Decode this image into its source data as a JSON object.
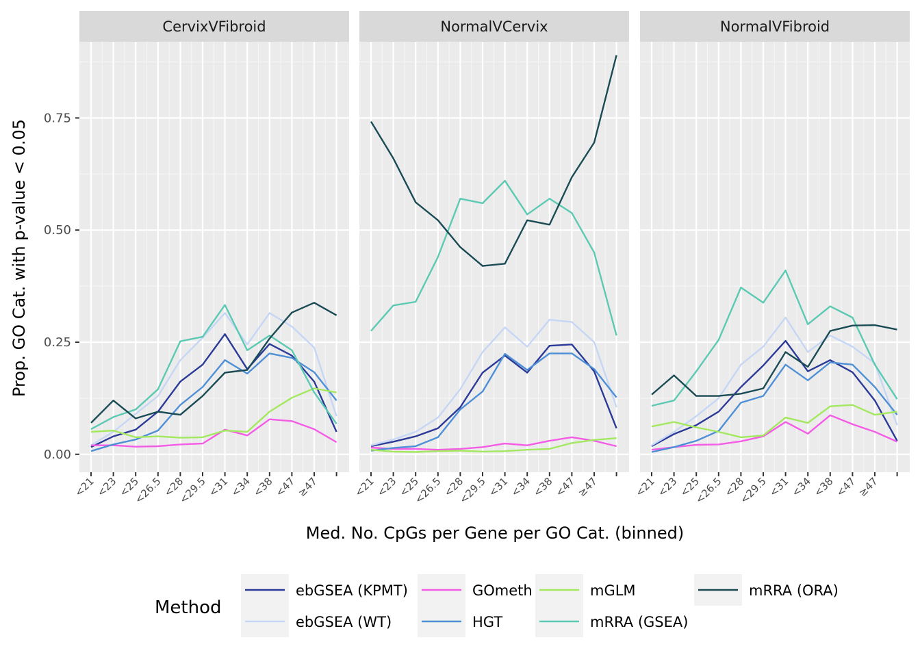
{
  "chart_data": {
    "type": "line",
    "ylabel": "Prop. GO Cat. with p-value < 0.05",
    "xlabel": "Med. No. CpGs per Gene per GO Cat. (binned)",
    "ylim": [
      -0.04,
      0.92
    ],
    "yticks": [
      0.0,
      0.25,
      0.5,
      0.75
    ],
    "ytick_labels": [
      "0.00",
      "0.25",
      "0.50",
      "0.75"
    ],
    "categories": [
      "<21",
      "<23",
      "<25",
      "<26.5",
      "<28",
      "<29.5",
      "<31",
      "<34",
      "<38",
      "<47",
      "≥47",
      ""
    ],
    "grid": true,
    "legend_title": "Method",
    "legend_position": "bottom",
    "colors": {
      "ebGSEA (KPMT)": "#2b3a97",
      "ebGSEA (WT)": "#c6d6f5",
      "GOmeth": "#f45ce6",
      "HGT": "#4e8fd6",
      "mGLM": "#a3e85f",
      "mRRA (GSEA)": "#5cc9b3",
      "mRRA (ORA)": "#1a4b55"
    },
    "legend_order": [
      "ebGSEA (KPMT)",
      "ebGSEA (WT)",
      "GOmeth",
      "HGT",
      "mGLM",
      "mRRA (GSEA)",
      "mRRA (ORA)"
    ],
    "panels": [
      {
        "title": "CervixVFibroid",
        "series": [
          {
            "name": "ebGSEA (KPMT)",
            "values": [
              0.016,
              0.04,
              0.055,
              0.095,
              0.162,
              0.2,
              0.268,
              0.19,
              0.246,
              0.22,
              0.162,
              0.05
            ]
          },
          {
            "name": "ebGSEA (WT)",
            "values": [
              0.02,
              0.05,
              0.09,
              0.13,
              0.21,
              0.26,
              0.315,
              0.245,
              0.315,
              0.285,
              0.238,
              0.085
            ]
          },
          {
            "name": "GOmeth",
            "values": [
              0.02,
              0.02,
              0.017,
              0.018,
              0.022,
              0.024,
              0.055,
              0.042,
              0.078,
              0.074,
              0.056,
              0.027
            ]
          },
          {
            "name": "HGT",
            "values": [
              0.007,
              0.022,
              0.033,
              0.053,
              0.11,
              0.15,
              0.21,
              0.18,
              0.225,
              0.215,
              0.183,
              0.12
            ]
          },
          {
            "name": "mGLM",
            "values": [
              0.05,
              0.053,
              0.038,
              0.04,
              0.037,
              0.038,
              0.053,
              0.05,
              0.095,
              0.126,
              0.147,
              0.138
            ]
          },
          {
            "name": "mRRA (GSEA)",
            "values": [
              0.056,
              0.083,
              0.1,
              0.145,
              0.252,
              0.262,
              0.333,
              0.232,
              0.265,
              0.232,
              0.138,
              0.068
            ]
          },
          {
            "name": "mRRA (ORA)",
            "values": [
              0.07,
              0.12,
              0.08,
              0.095,
              0.088,
              0.13,
              0.182,
              0.188,
              0.258,
              0.316,
              0.338,
              0.31
            ]
          }
        ]
      },
      {
        "title": "NormalVCervix",
        "series": [
          {
            "name": "ebGSEA (KPMT)",
            "values": [
              0.018,
              0.028,
              0.04,
              0.058,
              0.105,
              0.182,
              0.22,
              0.182,
              0.242,
              0.245,
              0.185,
              0.058
            ]
          },
          {
            "name": "ebGSEA (WT)",
            "values": [
              0.02,
              0.033,
              0.05,
              0.082,
              0.145,
              0.228,
              0.283,
              0.24,
              0.3,
              0.295,
              0.25,
              0.105
            ]
          },
          {
            "name": "GOmeth",
            "values": [
              0.015,
              0.012,
              0.012,
              0.01,
              0.012,
              0.016,
              0.024,
              0.02,
              0.03,
              0.038,
              0.03,
              0.018
            ]
          },
          {
            "name": "HGT",
            "values": [
              0.008,
              0.014,
              0.018,
              0.038,
              0.1,
              0.14,
              0.224,
              0.188,
              0.225,
              0.225,
              0.19,
              0.127
            ]
          },
          {
            "name": "mGLM",
            "values": [
              0.01,
              0.006,
              0.005,
              0.007,
              0.008,
              0.006,
              0.007,
              0.01,
              0.012,
              0.025,
              0.032,
              0.036
            ]
          },
          {
            "name": "mRRA (GSEA)",
            "values": [
              0.275,
              0.332,
              0.34,
              0.44,
              0.57,
              0.56,
              0.61,
              0.535,
              0.57,
              0.538,
              0.45,
              0.265
            ]
          },
          {
            "name": "mRRA (ORA)",
            "values": [
              0.742,
              0.66,
              0.562,
              0.522,
              0.462,
              0.42,
              0.425,
              0.522,
              0.512,
              0.618,
              0.695,
              0.89
            ]
          }
        ]
      },
      {
        "title": "NormalVFibroid",
        "series": [
          {
            "name": "ebGSEA (KPMT)",
            "values": [
              0.018,
              0.045,
              0.065,
              0.095,
              0.15,
              0.198,
              0.253,
              0.185,
              0.21,
              0.183,
              0.12,
              0.03
            ]
          },
          {
            "name": "ebGSEA (WT)",
            "values": [
              0.02,
              0.05,
              0.085,
              0.125,
              0.2,
              0.24,
              0.305,
              0.228,
              0.265,
              0.24,
              0.203,
              0.065
            ]
          },
          {
            "name": "GOmeth",
            "values": [
              0.01,
              0.016,
              0.021,
              0.022,
              0.029,
              0.04,
              0.072,
              0.046,
              0.087,
              0.067,
              0.05,
              0.028
            ]
          },
          {
            "name": "HGT",
            "values": [
              0.005,
              0.016,
              0.03,
              0.052,
              0.115,
              0.13,
              0.2,
              0.165,
              0.205,
              0.2,
              0.15,
              0.088
            ]
          },
          {
            "name": "mGLM",
            "values": [
              0.062,
              0.072,
              0.06,
              0.05,
              0.038,
              0.042,
              0.082,
              0.07,
              0.107,
              0.11,
              0.088,
              0.095
            ]
          },
          {
            "name": "mRRA (GSEA)",
            "values": [
              0.108,
              0.12,
              0.185,
              0.255,
              0.372,
              0.338,
              0.41,
              0.29,
              0.33,
              0.305,
              0.2,
              0.123
            ]
          },
          {
            "name": "mRRA (ORA)",
            "values": [
              0.133,
              0.176,
              0.13,
              0.13,
              0.135,
              0.147,
              0.228,
              0.195,
              0.275,
              0.287,
              0.288,
              0.278
            ]
          }
        ]
      }
    ]
  }
}
